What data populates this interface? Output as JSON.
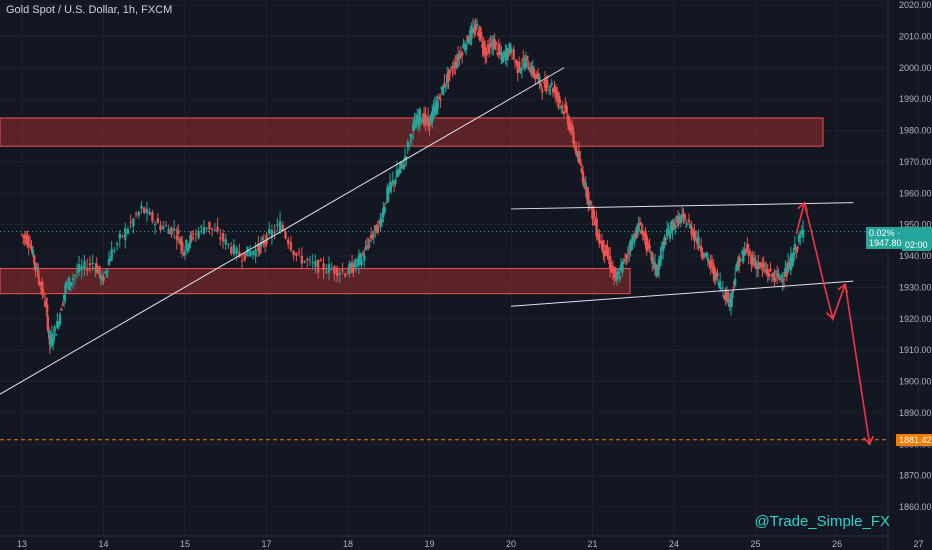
{
  "header": {
    "symbol": "Gold Spot / U.S. Dollar, 1h, FXCM"
  },
  "price_tag": {
    "change_pct": "0.02%",
    "price": "1947.80",
    "countdown": "02:00"
  },
  "target_tag": "1881.42",
  "watermark": "@Trade_Simple_FX",
  "colors": {
    "background": "#131722",
    "bull": "#26a69a",
    "bear": "#ef5350",
    "zone_fill": "#7a2a2a",
    "zone_border": "#ef5350",
    "projection": "#f23645",
    "target_line": "#f57c00",
    "price_tag": "#26a69a"
  },
  "chart_data": {
    "type": "candlestick",
    "title": "Gold Spot / U.S. Dollar, 1h, FXCM",
    "y_ticks": [
      1860,
      1870,
      1880,
      1890,
      1900,
      1910,
      1920,
      1930,
      1940,
      1950,
      1960,
      1970,
      1980,
      1990,
      2000,
      2010,
      2020
    ],
    "x_ticks": [
      "13",
      "14",
      "15",
      "17",
      "18",
      "19",
      "20",
      "21",
      "24",
      "25",
      "26",
      "27"
    ],
    "ylim": [
      1858,
      2021
    ],
    "current_price": 1947.8,
    "target_price": 1881.42,
    "grid": true,
    "price_path": [
      [
        13.0,
        1947
      ],
      [
        13.1,
        1945
      ],
      [
        13.2,
        1935
      ],
      [
        13.3,
        1925
      ],
      [
        13.35,
        1912
      ],
      [
        13.45,
        1918
      ],
      [
        13.55,
        1930
      ],
      [
        13.7,
        1935
      ],
      [
        13.9,
        1938
      ],
      [
        14.0,
        1932
      ],
      [
        14.1,
        1940
      ],
      [
        14.3,
        1948
      ],
      [
        14.5,
        1955
      ],
      [
        14.7,
        1950
      ],
      [
        14.9,
        1948
      ],
      [
        15.0,
        1942
      ],
      [
        15.1,
        1946
      ],
      [
        15.3,
        1950
      ],
      [
        15.5,
        1945
      ],
      [
        15.7,
        1940
      ],
      [
        15.9,
        1942
      ],
      [
        16.0,
        1945
      ],
      [
        16.2,
        1950
      ],
      [
        16.4,
        1940
      ],
      [
        16.6,
        1937
      ],
      [
        16.8,
        1936
      ],
      [
        17.0,
        1935
      ],
      [
        17.1,
        1937
      ],
      [
        17.2,
        1940
      ],
      [
        17.3,
        1946
      ],
      [
        17.4,
        1950
      ],
      [
        17.5,
        1960
      ],
      [
        17.6,
        1965
      ],
      [
        17.7,
        1970
      ],
      [
        17.8,
        1980
      ],
      [
        17.9,
        1985
      ],
      [
        18.0,
        1982
      ],
      [
        18.1,
        1988
      ],
      [
        18.2,
        1995
      ],
      [
        18.3,
        2000
      ],
      [
        18.4,
        2005
      ],
      [
        18.5,
        2010
      ],
      [
        18.6,
        2013
      ],
      [
        18.7,
        2005
      ],
      [
        18.8,
        2008
      ],
      [
        18.9,
        2003
      ],
      [
        19.0,
        2006
      ],
      [
        19.1,
        2000
      ],
      [
        19.2,
        2002
      ],
      [
        19.3,
        1998
      ],
      [
        19.4,
        1994
      ],
      [
        19.5,
        1995
      ],
      [
        19.6,
        1990
      ],
      [
        19.7,
        1985
      ],
      [
        19.8,
        1975
      ],
      [
        19.9,
        1965
      ],
      [
        20.0,
        1955
      ],
      [
        20.1,
        1945
      ],
      [
        20.2,
        1940
      ],
      [
        20.3,
        1932
      ],
      [
        20.4,
        1938
      ],
      [
        20.5,
        1945
      ],
      [
        20.6,
        1950
      ],
      [
        20.7,
        1942
      ],
      [
        20.8,
        1935
      ],
      [
        20.9,
        1945
      ],
      [
        21.0,
        1950
      ],
      [
        21.1,
        1952
      ],
      [
        21.2,
        1950
      ],
      [
        21.3,
        1945
      ],
      [
        21.4,
        1940
      ],
      [
        21.5,
        1935
      ],
      [
        21.6,
        1930
      ],
      [
        21.7,
        1925
      ],
      [
        21.8,
        1938
      ],
      [
        21.9,
        1942
      ],
      [
        22.0,
        1938
      ],
      [
        22.1,
        1936
      ],
      [
        22.2,
        1934
      ],
      [
        22.3,
        1933
      ],
      [
        22.4,
        1935
      ],
      [
        22.5,
        1942
      ],
      [
        22.6,
        1948
      ]
    ],
    "zones": [
      {
        "name": "resistance",
        "y1": 1975,
        "y2": 1984
      },
      {
        "name": "support",
        "y1": 1928,
        "y2": 1936
      }
    ],
    "lines": [
      {
        "name": "ascending-trendline",
        "p1": [
          12.0,
          1885
        ],
        "p2": [
          19.65,
          2000
        ]
      },
      {
        "name": "channel-top",
        "p1": [
          19.0,
          1955
        ],
        "p2": [
          23.2,
          1957
        ]
      },
      {
        "name": "channel-bottom",
        "p1": [
          19.0,
          1924
        ],
        "p2": [
          23.2,
          1932
        ]
      }
    ],
    "projection": [
      [
        22.5,
        1947
      ],
      [
        22.6,
        1957
      ],
      [
        22.85,
        1930
      ],
      [
        22.95,
        1920
      ],
      [
        23.1,
        1931
      ],
      [
        23.4,
        1880
      ]
    ]
  }
}
